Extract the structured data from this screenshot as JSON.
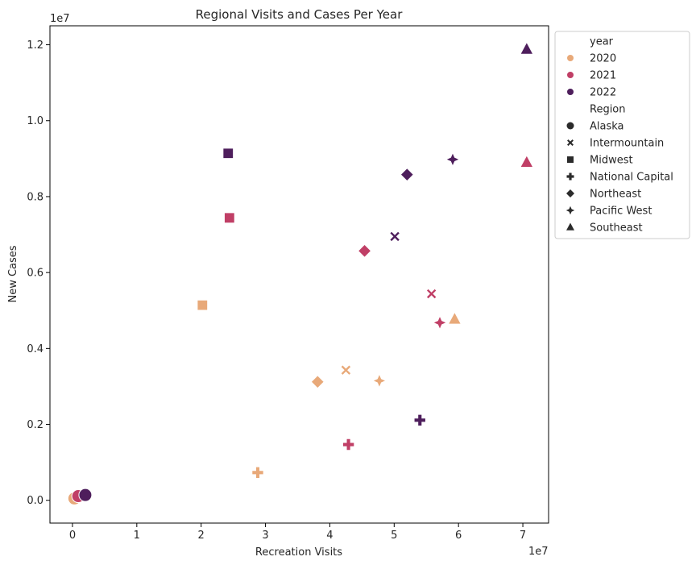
{
  "chart_data": {
    "type": "scatter",
    "title": "Regional Visits and Cases Per Year",
    "xlabel": "Recreation Visits",
    "ylabel": "New Cases",
    "x_offset_text": "1e7",
    "y_offset_text": "1e7",
    "xlim": [
      -3500000,
      74000000
    ],
    "ylim": [
      -600000,
      12500000
    ],
    "x_ticks": [
      0,
      10000000,
      20000000,
      30000000,
      40000000,
      50000000,
      60000000,
      70000000
    ],
    "x_tick_labels": [
      "0",
      "1",
      "2",
      "3",
      "4",
      "5",
      "6",
      "7"
    ],
    "y_ticks": [
      0,
      2000000,
      4000000,
      6000000,
      8000000,
      10000000,
      12000000
    ],
    "y_tick_labels": [
      "0.0",
      "0.2",
      "0.4",
      "0.6",
      "0.8",
      "1.0",
      "1.2"
    ],
    "grid": false,
    "legend_placement": "outside upper right",
    "legend": {
      "hue_title": "year",
      "hue_entries": [
        {
          "label": "2020",
          "color": "#e8a979"
        },
        {
          "label": "2021",
          "color": "#c03f66"
        },
        {
          "label": "2022",
          "color": "#4e1e5c"
        }
      ],
      "style_title": "Region",
      "style_entries": [
        {
          "label": "Alaska",
          "marker": "circle"
        },
        {
          "label": "Intermountain",
          "marker": "x"
        },
        {
          "label": "Midwest",
          "marker": "square"
        },
        {
          "label": "National Capital",
          "marker": "plus"
        },
        {
          "label": "Northeast",
          "marker": "diamond"
        },
        {
          "label": "Pacific West",
          "marker": "star4"
        },
        {
          "label": "Southeast",
          "marker": "triangle"
        }
      ]
    },
    "points": [
      {
        "year": "2020",
        "region": "Alaska",
        "x": 300000,
        "y": 50000
      },
      {
        "year": "2021",
        "region": "Alaska",
        "x": 900000,
        "y": 110000
      },
      {
        "year": "2022",
        "region": "Alaska",
        "x": 2000000,
        "y": 140000
      },
      {
        "year": "2020",
        "region": "Intermountain",
        "x": 42500000,
        "y": 3430000
      },
      {
        "year": "2021",
        "region": "Intermountain",
        "x": 55800000,
        "y": 5440000
      },
      {
        "year": "2022",
        "region": "Intermountain",
        "x": 50100000,
        "y": 6950000
      },
      {
        "year": "2020",
        "region": "Midwest",
        "x": 20200000,
        "y": 5140000
      },
      {
        "year": "2021",
        "region": "Midwest",
        "x": 24400000,
        "y": 7440000
      },
      {
        "year": "2022",
        "region": "Midwest",
        "x": 24200000,
        "y": 9140000
      },
      {
        "year": "2020",
        "region": "National Capital",
        "x": 28800000,
        "y": 730000
      },
      {
        "year": "2021",
        "region": "National Capital",
        "x": 42900000,
        "y": 1470000
      },
      {
        "year": "2022",
        "region": "National Capital",
        "x": 54000000,
        "y": 2110000
      },
      {
        "year": "2020",
        "region": "Northeast",
        "x": 38100000,
        "y": 3120000
      },
      {
        "year": "2021",
        "region": "Northeast",
        "x": 45400000,
        "y": 6570000
      },
      {
        "year": "2022",
        "region": "Northeast",
        "x": 52000000,
        "y": 8580000
      },
      {
        "year": "2020",
        "region": "Pacific West",
        "x": 47700000,
        "y": 3150000
      },
      {
        "year": "2021",
        "region": "Pacific West",
        "x": 57100000,
        "y": 4680000
      },
      {
        "year": "2022",
        "region": "Pacific West",
        "x": 59100000,
        "y": 8980000
      },
      {
        "year": "2020",
        "region": "Southeast",
        "x": 59400000,
        "y": 4770000
      },
      {
        "year": "2021",
        "region": "Southeast",
        "x": 70600000,
        "y": 8900000
      },
      {
        "year": "2022",
        "region": "Southeast",
        "x": 70600000,
        "y": 11880000
      }
    ]
  }
}
